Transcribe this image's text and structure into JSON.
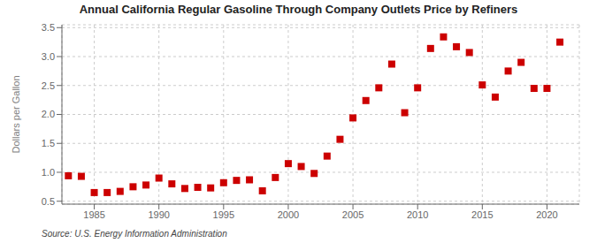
{
  "chart_data": {
    "type": "scatter",
    "title": "Annual California Regular Gasoline Through Company Outlets Price by Refiners",
    "ylabel": "Dollars per Gallon",
    "annotation": "Source: U.S. Energy Information Administration",
    "x": [
      1983,
      1984,
      1985,
      1986,
      1987,
      1988,
      1989,
      1990,
      1991,
      1992,
      1993,
      1994,
      1995,
      1996,
      1997,
      1998,
      1999,
      2000,
      2001,
      2002,
      2003,
      2004,
      2005,
      2006,
      2007,
      2008,
      2009,
      2010,
      2011,
      2012,
      2013,
      2014,
      2015,
      2016,
      2017,
      2018,
      2019,
      2020,
      2021
    ],
    "values": [
      0.94,
      0.93,
      0.65,
      0.65,
      0.67,
      0.75,
      0.78,
      0.9,
      0.8,
      0.72,
      0.74,
      0.73,
      0.82,
      0.86,
      0.87,
      0.68,
      0.91,
      1.15,
      1.1,
      0.98,
      1.28,
      1.57,
      1.94,
      2.24,
      2.46,
      2.87,
      2.03,
      2.46,
      3.14,
      3.34,
      3.17,
      3.07,
      2.51,
      2.3,
      2.75,
      2.9,
      2.45,
      2.45,
      3.25
    ],
    "color": "#cc0000",
    "marker": "square",
    "xlim": [
      1982.5,
      2022.5
    ],
    "ylim": [
      0.45,
      3.55
    ],
    "xticks": [
      1985,
      1990,
      1995,
      2000,
      2005,
      2010,
      2015,
      2020
    ],
    "yticks": [
      0.5,
      {
        "value": 1.0,
        "label": "1.0"
      },
      1.5,
      {
        "value": 2.0,
        "label": "2.0"
      },
      2.5,
      {
        "value": 3.0,
        "label": "3.0"
      },
      3.5
    ],
    "grid": true
  }
}
